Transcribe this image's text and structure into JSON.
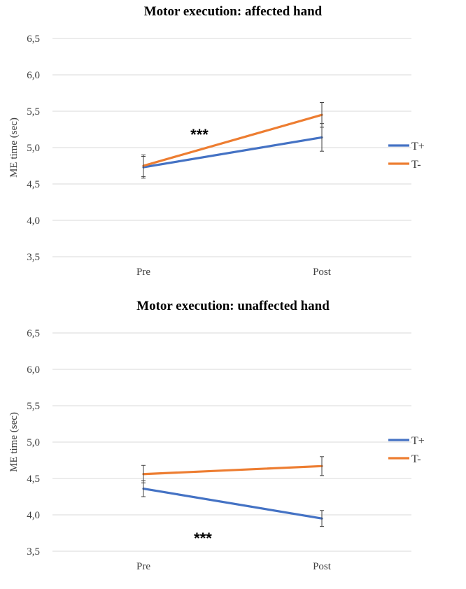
{
  "chart_data": [
    {
      "type": "line",
      "title": "Motor execution: affected hand",
      "ylabel": "ME time (sec)",
      "xlabel": "",
      "categories": [
        "Pre",
        "Post"
      ],
      "ylim": [
        3.5,
        6.5
      ],
      "yticks": [
        "3,5",
        "4,0",
        "4,5",
        "5,0",
        "5,5",
        "6,0",
        "6,5"
      ],
      "ytick_values": [
        3.5,
        4.0,
        4.5,
        5.0,
        5.5,
        6.0,
        6.5
      ],
      "grid": true,
      "legend_position": "right",
      "series": [
        {
          "name": "T+",
          "color": "#4472c4",
          "values": [
            4.73,
            5.14
          ],
          "errors": [
            0.15,
            0.19
          ]
        },
        {
          "name": "T-",
          "color": "#ed7d31",
          "values": [
            4.75,
            5.45
          ],
          "errors": [
            0.15,
            0.17
          ]
        }
      ],
      "annotation": "***"
    },
    {
      "type": "line",
      "title": "Motor execution: unaffected hand",
      "ylabel": "ME time (sec)",
      "xlabel": "",
      "categories": [
        "Pre",
        "Post"
      ],
      "ylim": [
        3.5,
        6.5
      ],
      "yticks": [
        "3,5",
        "4,0",
        "4,5",
        "5,0",
        "5,5",
        "6,0",
        "6,5"
      ],
      "ytick_values": [
        3.5,
        4.0,
        4.5,
        5.0,
        5.5,
        6.0,
        6.5
      ],
      "grid": true,
      "legend_position": "right",
      "series": [
        {
          "name": "T+",
          "color": "#4472c4",
          "values": [
            4.36,
            3.95
          ],
          "errors": [
            0.11,
            0.11
          ]
        },
        {
          "name": "T-",
          "color": "#ed7d31",
          "values": [
            4.56,
            4.67
          ],
          "errors": [
            0.12,
            0.13
          ]
        }
      ],
      "annotation": "***"
    }
  ]
}
